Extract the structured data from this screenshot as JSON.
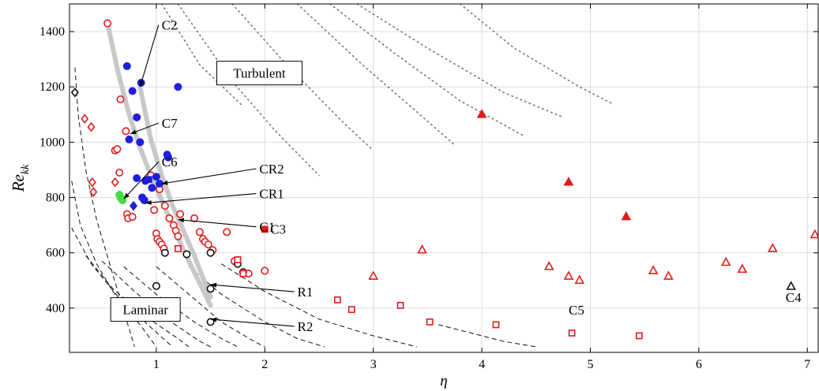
{
  "chart_data": {
    "type": "scatter",
    "title": "",
    "xlabel": "η",
    "ylabel": "Re_kk",
    "xlim": [
      0.2,
      7.1
    ],
    "ylim": [
      240,
      1500
    ],
    "xticks": [
      "1",
      "2",
      "3",
      "4",
      "5",
      "6",
      "7"
    ],
    "xtick_values": [
      1,
      2,
      3,
      4,
      5,
      6,
      7
    ],
    "yticks": [
      "400",
      "600",
      "800",
      "1000",
      "1200",
      "1400"
    ],
    "ytick_values": [
      400,
      600,
      800,
      1000,
      1200,
      1400
    ],
    "grid": true,
    "colors": {
      "red": "#e41a1c",
      "blue": "#1f1fe0",
      "green": "#44dd44",
      "black": "#111111",
      "band": "#c8c8c8"
    },
    "region_labels": [
      {
        "text": "Turbulent",
        "x": 1.95,
        "y": 1250
      },
      {
        "text": "Laminar",
        "x": 0.9,
        "y": 395
      }
    ],
    "annotations": [
      {
        "text": "C2",
        "x": 1.05,
        "y": 1410,
        "arrow_to": [
          0.85,
          1200
        ]
      },
      {
        "text": "C7",
        "x": 1.05,
        "y": 1055,
        "arrow_to": [
          0.76,
          1030
        ]
      },
      {
        "text": "C6",
        "x": 1.05,
        "y": 915,
        "arrow_to": [
          0.7,
          795
        ]
      },
      {
        "text": "CR2",
        "x": 1.95,
        "y": 890,
        "arrow_to": [
          1.05,
          850
        ]
      },
      {
        "text": "CR1",
        "x": 1.95,
        "y": 800,
        "arrow_to": [
          0.9,
          780
        ]
      },
      {
        "text": "C1",
        "x": 1.95,
        "y": 680,
        "arrow_to": [
          1.2,
          720
        ]
      },
      {
        "text": "C3",
        "x": 2.05,
        "y": 672,
        "arrow_to": null
      },
      {
        "text": "R1",
        "x": 2.3,
        "y": 445,
        "arrow_to": [
          1.5,
          485
        ]
      },
      {
        "text": "R2",
        "x": 2.3,
        "y": 320,
        "arrow_to": [
          1.5,
          360
        ]
      },
      {
        "text": "C4",
        "x": 6.8,
        "y": 425,
        "arrow_to": null
      },
      {
        "text": "C5",
        "x": 4.8,
        "y": 380,
        "arrow_to": null
      }
    ],
    "band_curves": [
      {
        "name": "",
        "x": [
          0.55,
          0.65,
          0.75,
          0.85,
          0.95,
          1.05,
          1.15,
          1.25,
          1.35,
          1.45,
          1.5
        ],
        "y": [
          1430,
          1250,
          1100,
          980,
          880,
          790,
          700,
          610,
          530,
          450,
          410
        ]
      },
      {
        "name": "",
        "x": [
          0.85,
          0.95,
          1.05,
          1.15,
          1.25,
          1.35,
          1.45,
          1.5
        ],
        "y": [
          1200,
          1010,
          880,
          770,
          680,
          590,
          490,
          440
        ]
      }
    ],
    "dotted_curves": [
      {
        "x": [
          1.05,
          1.4,
          1.8
        ],
        "y": [
          1500,
          1280,
          1130
        ]
      },
      {
        "x": [
          1.2,
          1.7,
          2.1,
          2.5
        ],
        "y": [
          1500,
          1220,
          1040,
          880
        ]
      },
      {
        "x": [
          1.7,
          2.2,
          2.7,
          3.0
        ],
        "y": [
          1500,
          1280,
          1080,
          970
        ]
      },
      {
        "x": [
          2.3,
          2.9,
          3.4,
          3.75
        ],
        "y": [
          1500,
          1280,
          1110,
          990
        ]
      },
      {
        "x": [
          2.6,
          3.2,
          3.8,
          4.4
        ],
        "y": [
          1500,
          1320,
          1150,
          1020
        ]
      },
      {
        "x": [
          2.85,
          3.5,
          4.2,
          4.75
        ],
        "y": [
          1500,
          1340,
          1180,
          1090
        ]
      },
      {
        "x": [
          3.8,
          4.3,
          4.9,
          5.2
        ],
        "y": [
          1500,
          1340,
          1200,
          1140
        ]
      }
    ],
    "dashed_curves": [
      {
        "x": [
          0.25,
          0.28,
          0.35,
          0.45,
          0.6,
          0.8
        ],
        "y": [
          1270,
          1100,
          900,
          720,
          520,
          260
        ]
      },
      {
        "x": [
          0.22,
          0.3,
          0.45,
          0.6,
          0.85,
          1.0
        ],
        "y": [
          860,
          700,
          560,
          460,
          340,
          260
        ]
      },
      {
        "x": [
          0.22,
          0.4,
          0.65,
          0.95,
          1.15
        ],
        "y": [
          690,
          560,
          440,
          330,
          260
        ]
      },
      {
        "x": [
          0.35,
          0.6,
          0.9,
          1.2,
          1.3
        ],
        "y": [
          590,
          470,
          370,
          290,
          260
        ]
      },
      {
        "x": [
          0.5,
          0.8,
          1.1,
          1.4,
          1.5
        ],
        "y": [
          570,
          460,
          360,
          280,
          260
        ]
      },
      {
        "x": [
          0.7,
          1.0,
          1.35,
          1.6,
          1.75
        ],
        "y": [
          550,
          450,
          350,
          290,
          260
        ]
      },
      {
        "x": [
          1.0,
          1.3,
          1.6,
          1.9,
          2.0
        ],
        "y": [
          550,
          450,
          350,
          280,
          260
        ]
      },
      {
        "x": [
          1.3,
          1.6,
          2.0,
          2.3,
          2.55
        ],
        "y": [
          550,
          450,
          350,
          290,
          260
        ]
      },
      {
        "x": [
          1.6,
          2.0,
          2.5,
          3.0,
          3.4
        ],
        "y": [
          560,
          460,
          360,
          300,
          260
        ]
      },
      {
        "x": [
          3.6,
          3.9,
          4.2,
          4.5
        ],
        "y": [
          340,
          310,
          280,
          260
        ]
      }
    ],
    "series": [
      {
        "name": "",
        "marker": "circle-open",
        "color": "#e41a1c",
        "x": [
          0.55,
          0.67,
          0.72,
          0.62,
          0.64,
          0.66,
          0.73,
          0.74,
          0.78,
          0.95,
          0.98,
          1.03,
          1.08,
          1.12,
          1.16,
          1.18,
          1.2,
          1.22,
          1.0,
          1.01,
          1.03,
          1.05,
          1.07,
          1.35,
          1.4,
          1.43,
          1.45,
          1.48,
          1.52,
          1.65,
          1.72,
          1.85,
          2.0
        ],
        "y": [
          1430,
          1155,
          1040,
          970,
          975,
          890,
          740,
          725,
          730,
          880,
          755,
          830,
          770,
          725,
          700,
          680,
          660,
          740,
          670,
          650,
          640,
          630,
          615,
          725,
          675,
          650,
          640,
          630,
          610,
          675,
          570,
          525,
          535
        ]
      },
      {
        "name": "",
        "marker": "circle-filled",
        "color": "#1f1fe0",
        "x": [
          0.73,
          0.78,
          0.82,
          0.86,
          0.75,
          0.85,
          1.1,
          1.11,
          0.82,
          0.9,
          0.96,
          1.0,
          1.03,
          0.87,
          0.89,
          1.2
        ],
        "y": [
          1275,
          1185,
          1090,
          1215,
          1010,
          1000,
          955,
          945,
          870,
          860,
          835,
          875,
          850,
          800,
          790,
          1200
        ]
      },
      {
        "name": "",
        "marker": "circle-filled",
        "color": "#44dd44",
        "x": [
          0.66,
          0.67,
          0.68,
          0.69
        ],
        "y": [
          810,
          800,
          795,
          790
        ]
      },
      {
        "name": "",
        "marker": "diamond-open",
        "color": "#e41a1c",
        "x": [
          0.34,
          0.4,
          0.41,
          0.42,
          0.62
        ],
        "y": [
          1085,
          1055,
          855,
          820,
          855
        ]
      },
      {
        "name": "",
        "marker": "diamond-open",
        "color": "#111111",
        "x": [
          0.25
        ],
        "y": [
          1180
        ]
      },
      {
        "name": "",
        "marker": "diamond-filled",
        "color": "#1f1fe0",
        "x": [
          0.79
        ],
        "y": [
          770
        ]
      },
      {
        "name": "",
        "marker": "square-filled",
        "color": "#1f1fe0",
        "x": [
          0.93
        ],
        "y": [
          865
        ]
      },
      {
        "name": "",
        "marker": "circle-open",
        "color": "#111111",
        "x": [
          1.0,
          1.08,
          1.28,
          1.5,
          1.5,
          1.5,
          1.75,
          1.8
        ],
        "y": [
          480,
          600,
          595,
          600,
          470,
          350,
          560,
          530
        ]
      },
      {
        "name": "",
        "marker": "square-open",
        "color": "#e41a1c",
        "x": [
          1.2,
          1.75,
          1.8,
          2.67,
          2.8,
          3.25,
          3.52,
          4.13,
          4.83,
          5.45
        ],
        "y": [
          615,
          575,
          525,
          430,
          395,
          410,
          350,
          340,
          310,
          300
        ]
      },
      {
        "name": "",
        "marker": "square-filled",
        "color": "#e41a1c",
        "x": [
          2.0
        ],
        "y": [
          685
        ]
      },
      {
        "name": "",
        "marker": "triangle-open",
        "color": "#e41a1c",
        "x": [
          3.0,
          3.45,
          4.62,
          4.8,
          4.9,
          5.58,
          5.72,
          6.25,
          6.4,
          6.68,
          7.07
        ],
        "y": [
          515,
          610,
          550,
          515,
          500,
          535,
          515,
          565,
          540,
          615,
          665
        ]
      },
      {
        "name": "",
        "marker": "triangle-filled",
        "color": "#e41a1c",
        "x": [
          4.0,
          4.8,
          5.33
        ],
        "y": [
          1100,
          855,
          730
        ]
      },
      {
        "name": "",
        "marker": "triangle-open",
        "color": "#111111",
        "x": [
          6.85
        ],
        "y": [
          478
        ]
      }
    ]
  }
}
